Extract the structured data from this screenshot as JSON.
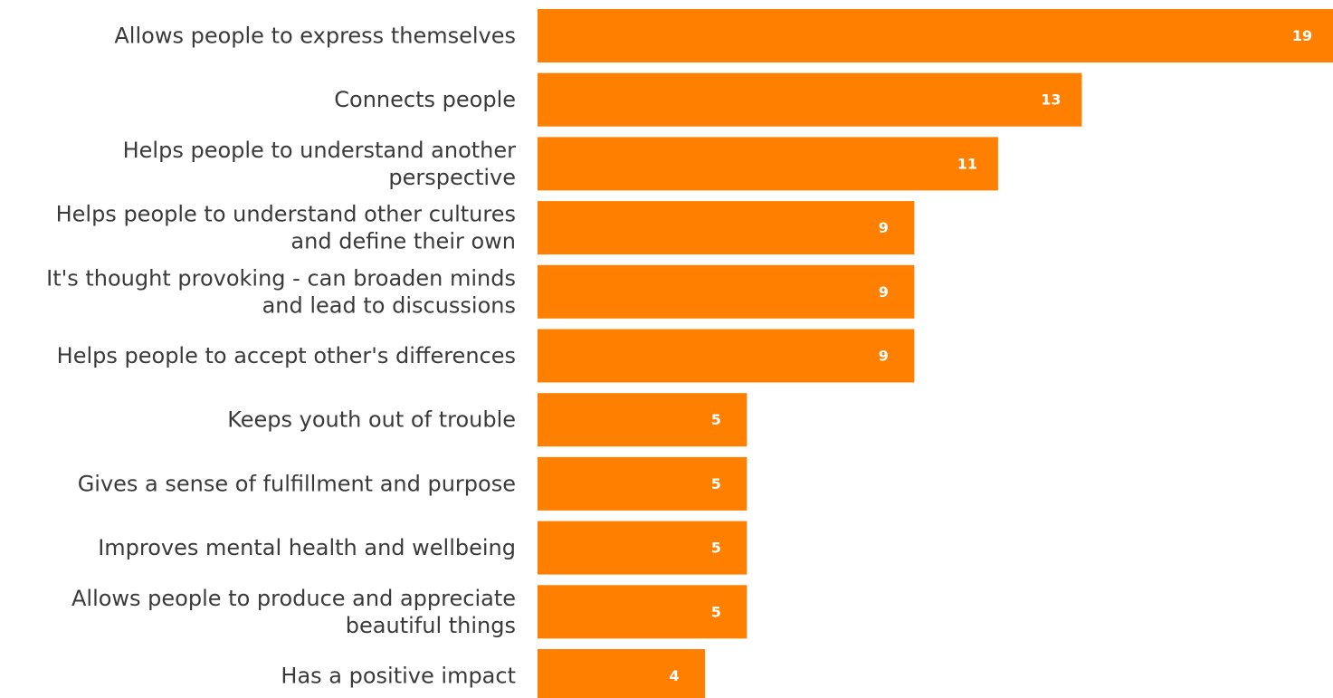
{
  "colors": {
    "bar": "#FF7F00",
    "category_text": "#3a3a3a",
    "value_text": "#ffffff",
    "background": "#ffffff"
  },
  "chart_data": {
    "type": "bar",
    "orientation": "horizontal",
    "categories": [
      "Allows people to express themselves",
      "Connects people",
      "Helps people to understand another perspective",
      "Helps people to understand other cultures and define their own",
      "It's thought provoking - can broaden minds and lead to discussions",
      "Helps people to accept other's differences",
      "Keeps youth out of trouble",
      "Gives a sense of fulfillment and purpose",
      "Improves mental health and wellbeing",
      "Allows people to produce and appreciate beautiful things",
      "Has a positive impact"
    ],
    "category_lines": [
      [
        "Allows people to express themselves"
      ],
      [
        "Connects people"
      ],
      [
        "Helps people to understand another",
        "perspective"
      ],
      [
        "Helps people to understand other cultures",
        "and define their own"
      ],
      [
        "It's thought provoking - can broaden minds",
        "and lead to discussions"
      ],
      [
        "Helps people to accept other's differences"
      ],
      [
        "Keeps youth out of trouble"
      ],
      [
        "Gives a sense of fulfillment and purpose"
      ],
      [
        "Improves mental health and wellbeing"
      ],
      [
        "Allows people to produce and appreciate",
        "beautiful things"
      ],
      [
        "Has a positive impact"
      ]
    ],
    "values": [
      19,
      13,
      11,
      9,
      9,
      9,
      5,
      5,
      5,
      5,
      4
    ],
    "xlim": [
      0,
      19
    ],
    "grid": false,
    "legend": "none",
    "data_labels": "inside-end",
    "title": "",
    "xlabel": "",
    "ylabel": ""
  }
}
